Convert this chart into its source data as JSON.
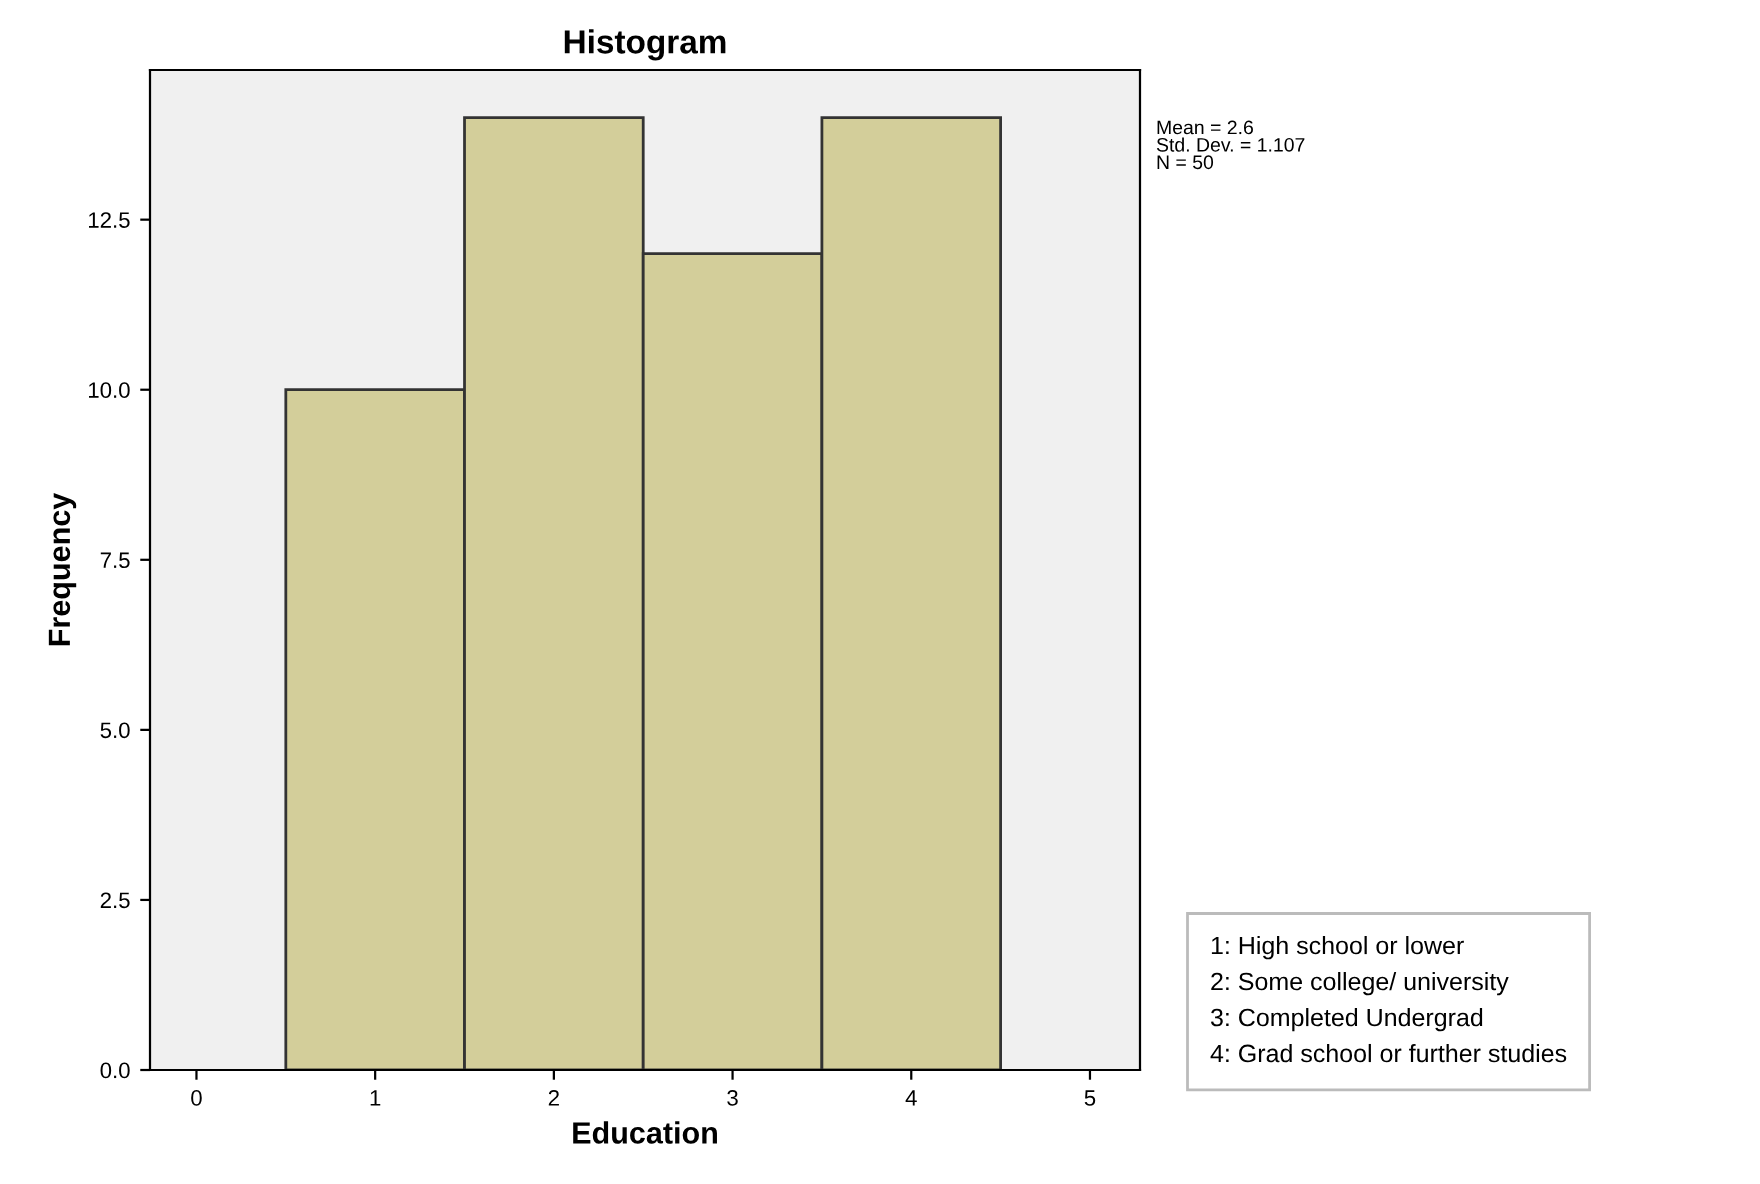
{
  "chart_data": {
    "type": "histogram",
    "title": "Histogram",
    "xlabel": "Education",
    "ylabel": "Frequency",
    "bins": [
      0.5,
      1.5,
      2.5,
      3.5,
      4.5
    ],
    "values": [
      10,
      14,
      12,
      14
    ],
    "color": "#d3ce9a",
    "xlim": [
      -0.26,
      5.28
    ],
    "ylim": [
      0,
      14.7
    ],
    "xticks": [
      0,
      1,
      2,
      3,
      4,
      5
    ],
    "yticks": [
      {
        "value": 0,
        "label": "0.0"
      },
      {
        "value": 2.5,
        "label": "2.5"
      },
      {
        "value": 5,
        "label": "5.0"
      },
      {
        "value": 7.5,
        "label": "7.5"
      },
      {
        "value": 10,
        "label": "10.0"
      },
      {
        "value": 12.5,
        "label": "12.5"
      }
    ],
    "grid": false,
    "annotations": [
      "Mean = 2.6\nStd. Dev. = 1.107\nN = 50",
      "1: High school or lower\n2: Some college/ university\n3: Completed Undergrad\n4: Grad school or further studies"
    ]
  }
}
